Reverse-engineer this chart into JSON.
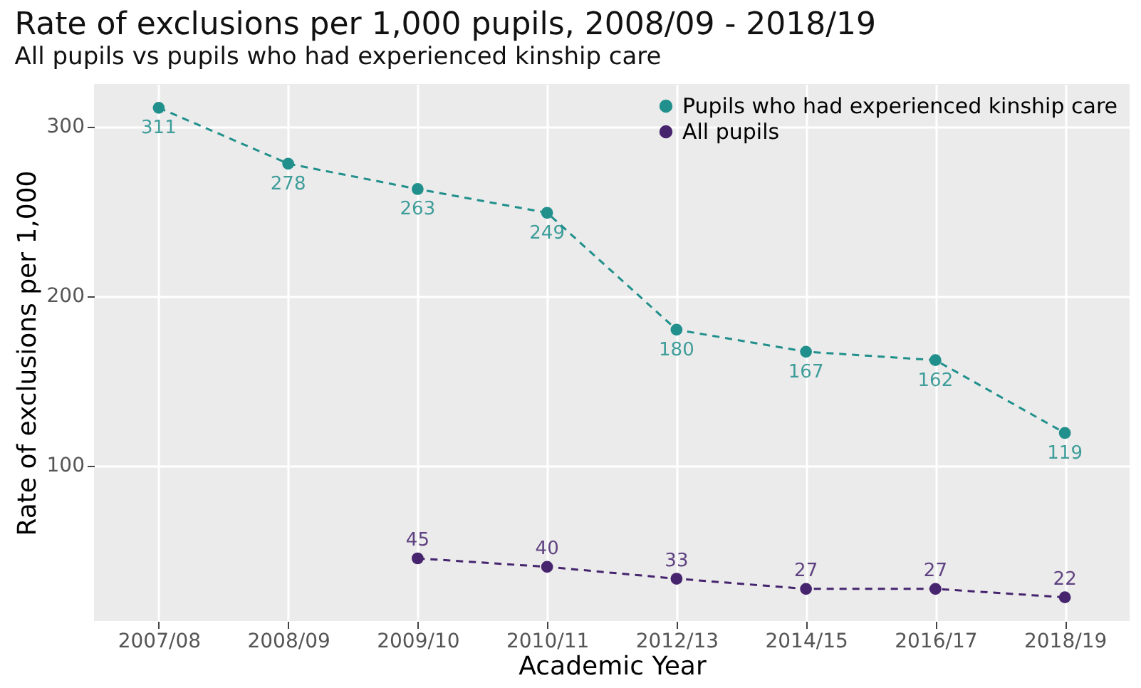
{
  "chart_data": {
    "type": "line",
    "title": "Rate of exclusions per 1,000 pupils, 2008/09 - 2018/19",
    "subtitle": "All pupils vs pupils who had experienced kinship care",
    "xlabel": "Academic Year",
    "ylabel": "Rate of exclusions per 1,000",
    "categories": [
      "2007/08",
      "2008/09",
      "2009/10",
      "2010/11",
      "2012/13",
      "2014/15",
      "2016/17",
      "2018/19"
    ],
    "series": [
      {
        "name": "Pupils who had experienced kinship care",
        "color": "#21908c",
        "values": [
          311,
          278,
          263,
          249,
          180,
          167,
          162,
          119
        ]
      },
      {
        "name": "All pupils",
        "color": "#46246e",
        "values": [
          null,
          null,
          45,
          40,
          33,
          27,
          27,
          22
        ]
      }
    ],
    "ylim": [
      8,
      325
    ],
    "yticks": [
      100,
      200,
      300
    ],
    "grid": true,
    "legend": "top right",
    "marker": "circle",
    "line_style": "dashed",
    "data_labels": true
  }
}
